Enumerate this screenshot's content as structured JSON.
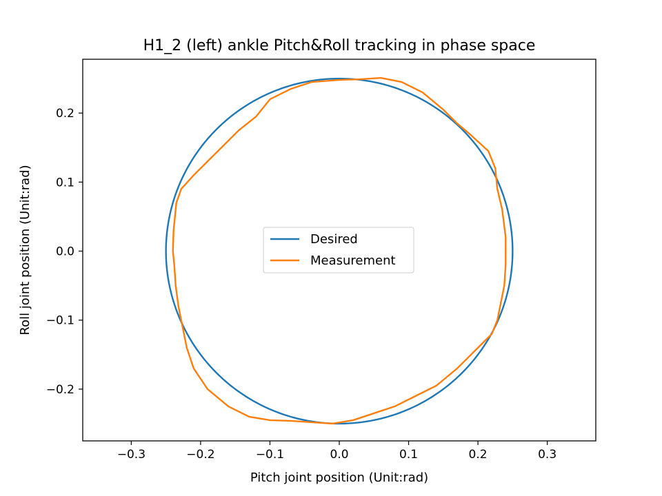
{
  "chart_data": {
    "type": "line",
    "title": "H1_2 (left) ankle Pitch&Roll tracking in phase space",
    "xlabel": "Pitch joint position (Unit:rad)",
    "ylabel": "Roll joint position (Unit:rad)",
    "xlim": [
      -0.37,
      0.37
    ],
    "ylim": [
      -0.275,
      0.278
    ],
    "xticks": [
      -0.3,
      -0.2,
      -0.1,
      0.0,
      0.1,
      0.2,
      0.3
    ],
    "xtick_labels": [
      "−0.3",
      "−0.2",
      "−0.1",
      "0.0",
      "0.1",
      "0.2",
      "0.3"
    ],
    "yticks": [
      -0.2,
      -0.1,
      0.0,
      0.1,
      0.2
    ],
    "ytick_labels": [
      "−0.2",
      "−0.1",
      "0.0",
      "0.1",
      "0.2"
    ],
    "grid": false,
    "legend_position": "center",
    "series": [
      {
        "name": "Desired",
        "color": "#1f77b4",
        "shape": "circle",
        "center": [
          0.0,
          0.0
        ],
        "radius": 0.25
      },
      {
        "name": "Measurement",
        "color": "#ff7f0e",
        "points": [
          [
            -0.24,
            0.0
          ],
          [
            -0.239,
            0.03
          ],
          [
            -0.237,
            0.05
          ],
          [
            -0.235,
            0.07
          ],
          [
            -0.228,
            0.09
          ],
          [
            -0.21,
            0.11
          ],
          [
            -0.19,
            0.13
          ],
          [
            -0.17,
            0.15
          ],
          [
            -0.145,
            0.175
          ],
          [
            -0.12,
            0.195
          ],
          [
            -0.1,
            0.22
          ],
          [
            -0.07,
            0.235
          ],
          [
            -0.04,
            0.245
          ],
          [
            0.0,
            0.248
          ],
          [
            0.03,
            0.249
          ],
          [
            0.06,
            0.251
          ],
          [
            0.09,
            0.245
          ],
          [
            0.12,
            0.23
          ],
          [
            0.15,
            0.205
          ],
          [
            0.17,
            0.185
          ],
          [
            0.19,
            0.168
          ],
          [
            0.215,
            0.145
          ],
          [
            0.225,
            0.12
          ],
          [
            0.228,
            0.09
          ],
          [
            0.235,
            0.06
          ],
          [
            0.24,
            0.02
          ],
          [
            0.24,
            -0.02
          ],
          [
            0.238,
            -0.05
          ],
          [
            0.232,
            -0.08
          ],
          [
            0.228,
            -0.1
          ],
          [
            0.22,
            -0.12
          ],
          [
            0.2,
            -0.14
          ],
          [
            0.17,
            -0.17
          ],
          [
            0.14,
            -0.195
          ],
          [
            0.11,
            -0.21
          ],
          [
            0.08,
            -0.225
          ],
          [
            0.05,
            -0.235
          ],
          [
            0.02,
            -0.245
          ],
          [
            -0.01,
            -0.25
          ],
          [
            -0.04,
            -0.248
          ],
          [
            -0.07,
            -0.246
          ],
          [
            -0.1,
            -0.245
          ],
          [
            -0.13,
            -0.24
          ],
          [
            -0.16,
            -0.225
          ],
          [
            -0.19,
            -0.2
          ],
          [
            -0.21,
            -0.17
          ],
          [
            -0.22,
            -0.14
          ],
          [
            -0.226,
            -0.11
          ],
          [
            -0.232,
            -0.08
          ],
          [
            -0.236,
            -0.05
          ],
          [
            -0.238,
            -0.02
          ],
          [
            -0.24,
            0.0
          ]
        ]
      }
    ]
  }
}
